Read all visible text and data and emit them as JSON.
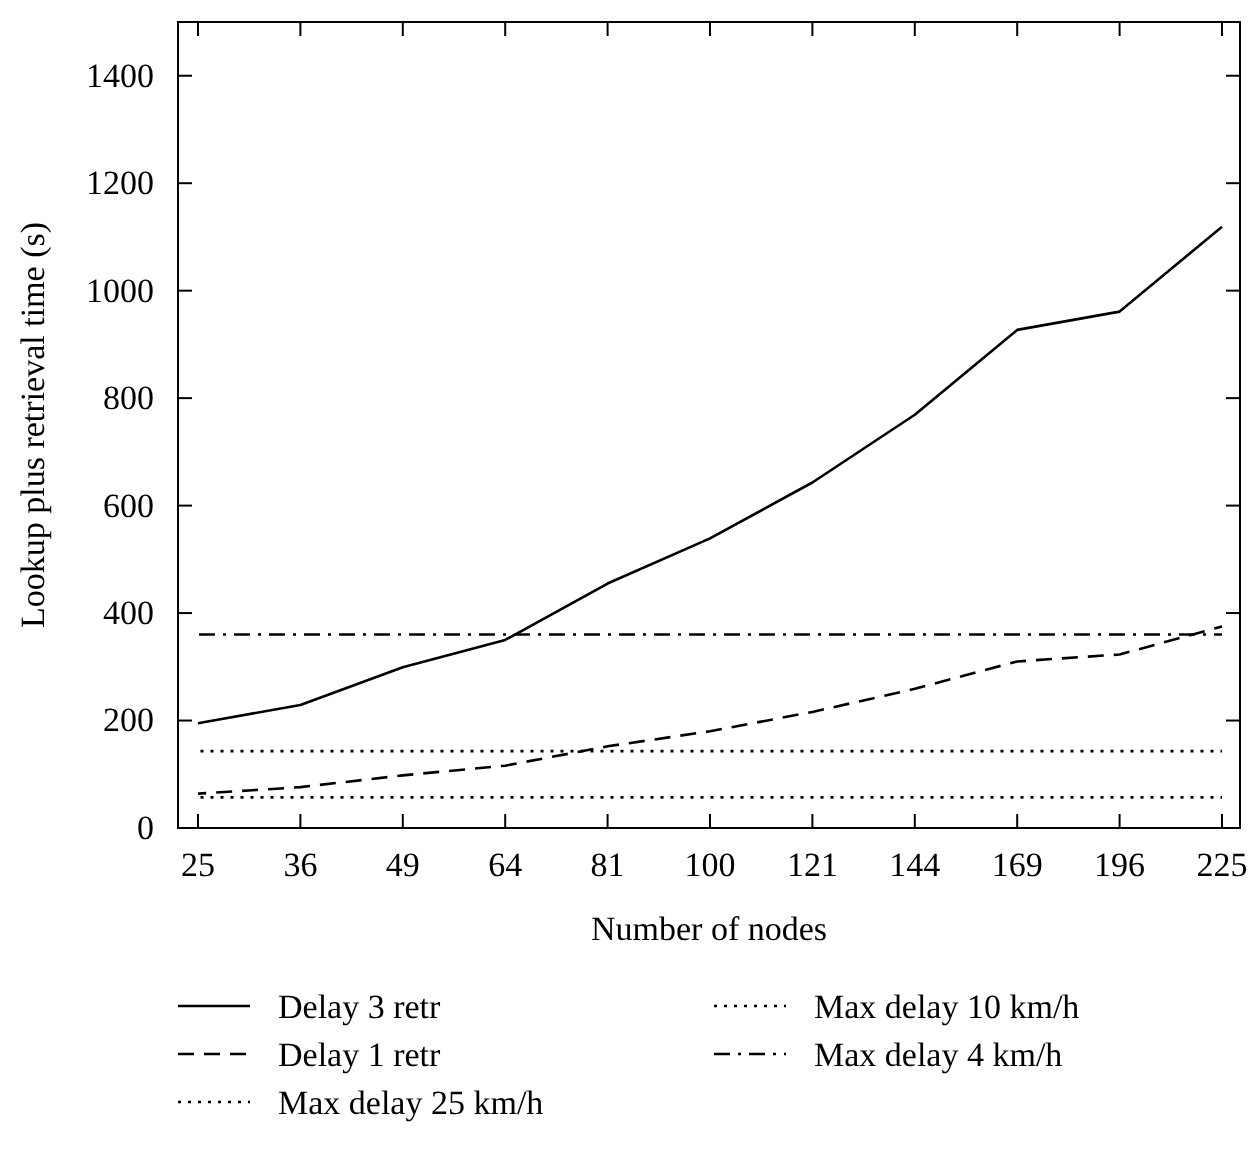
{
  "chart_data": {
    "type": "line",
    "xlabel": "Number of nodes",
    "ylabel": "Lookup plus retrieval time (s)",
    "categories": [
      "25",
      "36",
      "49",
      "64",
      "81",
      "100",
      "121",
      "144",
      "169",
      "196",
      "225"
    ],
    "ylim": [
      0,
      1500
    ],
    "yticks": [
      0,
      200,
      400,
      600,
      800,
      1000,
      1200,
      1400
    ],
    "grid": false,
    "legend": "bottom",
    "marker": "none",
    "series": [
      {
        "name": "Delay 3 retr",
        "color": "#000000",
        "line_style": "solid",
        "values": [
          195,
          229,
          299,
          350,
          455,
          539,
          643,
          769,
          927,
          961,
          1119
        ]
      },
      {
        "name": "Delay 1 retr",
        "color": "#000000",
        "line_style": "dashed",
        "values": [
          64,
          76,
          98,
          116,
          152,
          180,
          216,
          259,
          310,
          323,
          375
        ]
      },
      {
        "name": "Max delay 25 km/h",
        "color": "#000000",
        "line_style": "dotted",
        "values": [
          57,
          57,
          57,
          57,
          57,
          57,
          57,
          57,
          57,
          57,
          57
        ]
      },
      {
        "name": "Max delay 10 km/h",
        "color": "#000000",
        "line_style": "dotted",
        "values": [
          143,
          143,
          143,
          143,
          143,
          143,
          143,
          143,
          143,
          143,
          143
        ]
      },
      {
        "name": "Max delay 4 km/h",
        "color": "#000000",
        "line_style": "dashdot",
        "values": [
          360,
          360,
          360,
          360,
          360,
          360,
          360,
          360,
          360,
          360,
          360
        ]
      }
    ]
  }
}
